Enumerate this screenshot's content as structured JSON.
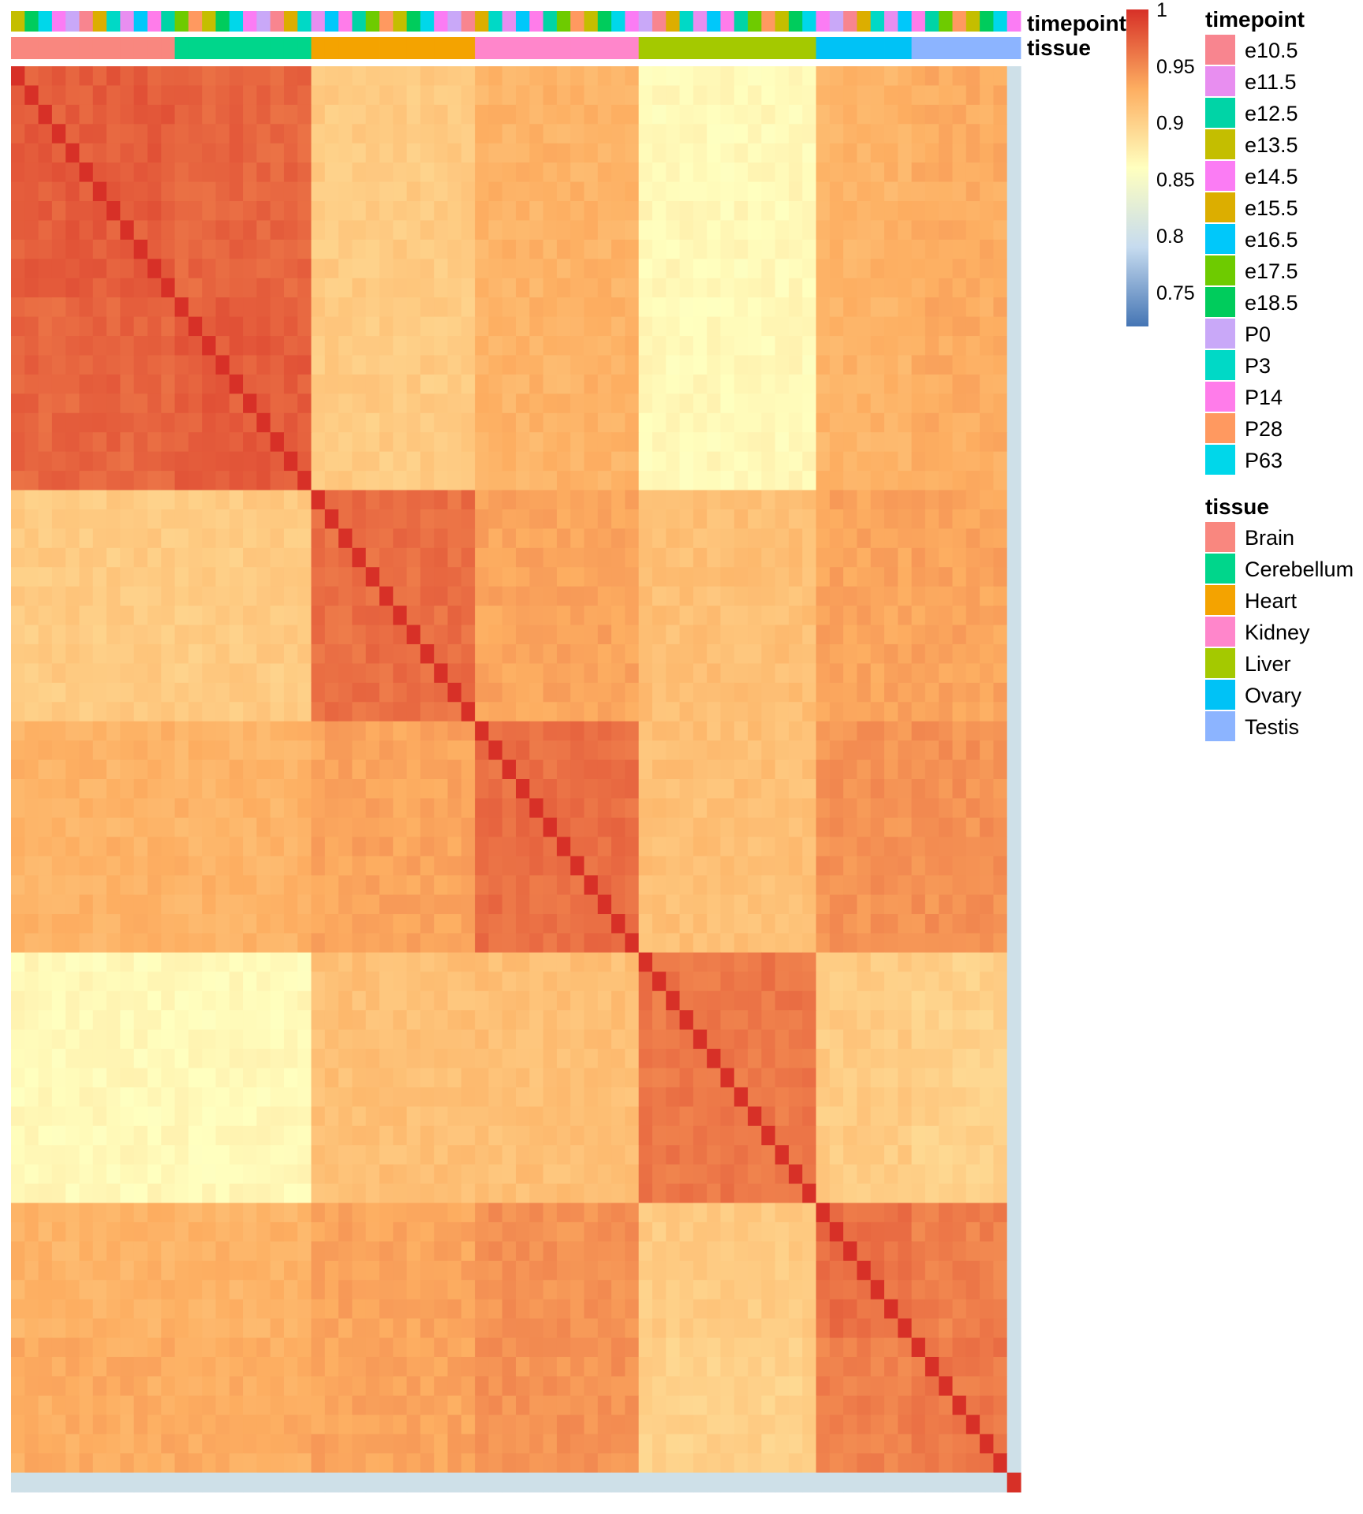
{
  "chart_data": {
    "type": "heatmap",
    "value_range": [
      0.72,
      1.0
    ],
    "color_scale": {
      "stops": [
        {
          "value": 0.72,
          "color": "#4575B4"
        },
        {
          "value": 0.79,
          "color": "#C6DBEF"
        },
        {
          "value": 0.86,
          "color": "#FFFFBF"
        },
        {
          "value": 0.93,
          "color": "#FDAE61"
        },
        {
          "value": 1.0,
          "color": "#D73027"
        }
      ],
      "ticks": [
        "1",
        "0.95",
        "0.9",
        "0.85",
        "0.8",
        "0.75"
      ],
      "tick_values": [
        1.0,
        0.95,
        0.9,
        0.85,
        0.8,
        0.75
      ]
    },
    "annotation_rows": [
      "timepoint",
      "tissue"
    ],
    "groups": [
      {
        "tissue": "Brain",
        "n_samples": 12
      },
      {
        "tissue": "Cerebellum",
        "n_samples": 10
      },
      {
        "tissue": "Heart",
        "n_samples": 12
      },
      {
        "tissue": "Kidney",
        "n_samples": 12
      },
      {
        "tissue": "Liver",
        "n_samples": 13
      },
      {
        "tissue": "Ovary",
        "n_samples": 7
      },
      {
        "tissue": "Testis",
        "n_samples": 7
      }
    ],
    "within_group_similarity": {
      "Brain": 0.975,
      "Cerebellum": 0.975,
      "Heart": 0.965,
      "Kidney": 0.965,
      "Liver": 0.96,
      "Ovary": 0.965,
      "Testis": 0.96
    },
    "between_group_similarity": [
      {
        "a": "Brain",
        "b": "Cerebellum",
        "value": 0.97
      },
      {
        "a": "Brain",
        "b": "Heart",
        "value": 0.905
      },
      {
        "a": "Brain",
        "b": "Kidney",
        "value": 0.925
      },
      {
        "a": "Brain",
        "b": "Liver",
        "value": 0.865
      },
      {
        "a": "Brain",
        "b": "Ovary",
        "value": 0.925
      },
      {
        "a": "Brain",
        "b": "Testis",
        "value": 0.93
      },
      {
        "a": "Cerebellum",
        "b": "Heart",
        "value": 0.905
      },
      {
        "a": "Cerebellum",
        "b": "Kidney",
        "value": 0.925
      },
      {
        "a": "Cerebellum",
        "b": "Liver",
        "value": 0.865
      },
      {
        "a": "Cerebellum",
        "b": "Ovary",
        "value": 0.925
      },
      {
        "a": "Cerebellum",
        "b": "Testis",
        "value": 0.93
      },
      {
        "a": "Heart",
        "b": "Kidney",
        "value": 0.935
      },
      {
        "a": "Heart",
        "b": "Liver",
        "value": 0.915
      },
      {
        "a": "Heart",
        "b": "Ovary",
        "value": 0.935
      },
      {
        "a": "Heart",
        "b": "Testis",
        "value": 0.935
      },
      {
        "a": "Kidney",
        "b": "Liver",
        "value": 0.915
      },
      {
        "a": "Kidney",
        "b": "Ovary",
        "value": 0.945
      },
      {
        "a": "Kidney",
        "b": "Testis",
        "value": 0.945
      },
      {
        "a": "Liver",
        "b": "Ovary",
        "value": 0.905
      },
      {
        "a": "Liver",
        "b": "Testis",
        "value": 0.9
      },
      {
        "a": "Ovary",
        "b": "Testis",
        "value": 0.955
      }
    ],
    "outlier_sample": {
      "position": "last",
      "similarity_to_others": 0.8
    }
  },
  "annotations": {
    "timepoint_label": "timepoint",
    "tissue_label": "tissue"
  },
  "legend": {
    "timepoint": {
      "title": "timepoint",
      "items": [
        {
          "label": "e10.5",
          "color": "#F8858F"
        },
        {
          "label": "e11.5",
          "color": "#E88EF0"
        },
        {
          "label": "e12.5",
          "color": "#00D4A6"
        },
        {
          "label": "e13.5",
          "color": "#C4BE00"
        },
        {
          "label": "e14.5",
          "color": "#FB7CF4"
        },
        {
          "label": "e15.5",
          "color": "#DCAE00"
        },
        {
          "label": "e16.5",
          "color": "#00C8FA"
        },
        {
          "label": "e17.5",
          "color": "#6ECB00"
        },
        {
          "label": "e18.5",
          "color": "#00CC5C"
        },
        {
          "label": "P0",
          "color": "#C9A8F8"
        },
        {
          "label": "P3",
          "color": "#00D9C6"
        },
        {
          "label": "P14",
          "color": "#FF7CEA"
        },
        {
          "label": "P28",
          "color": "#FF9960"
        },
        {
          "label": "P63",
          "color": "#00D7EA"
        }
      ]
    },
    "tissue": {
      "title": "tissue",
      "items": [
        {
          "label": "Brain",
          "color": "#F9877F"
        },
        {
          "label": "Cerebellum",
          "color": "#00D68B"
        },
        {
          "label": "Heart",
          "color": "#F4A300"
        },
        {
          "label": "Kidney",
          "color": "#FF86CB"
        },
        {
          "label": "Liver",
          "color": "#A4C900"
        },
        {
          "label": "Ovary",
          "color": "#00C2F6"
        },
        {
          "label": "Testis",
          "color": "#8CB4FF"
        }
      ]
    }
  }
}
